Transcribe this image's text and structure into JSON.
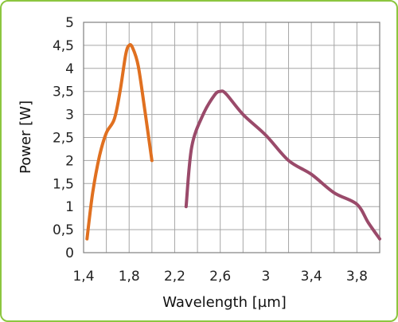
{
  "chart_data": {
    "type": "line",
    "xlabel": "Wavelength [µm]",
    "ylabel": "Power [W]",
    "xlim": [
      1.4,
      4.0
    ],
    "ylim": [
      0,
      5
    ],
    "x_ticks": [
      1.4,
      1.8,
      2.2,
      2.6,
      3.0,
      3.4,
      3.8
    ],
    "x_tick_labels": [
      "1,4",
      "1,8",
      "2,2",
      "2,6",
      "3",
      "3,4",
      "3,8"
    ],
    "y_ticks": [
      0,
      0.5,
      1,
      1.5,
      2,
      2.5,
      3,
      3.5,
      4,
      4.5,
      5
    ],
    "y_tick_labels": [
      "0",
      "0,5",
      "1",
      "1,5",
      "2",
      "2,5",
      "3",
      "3,5",
      "4",
      "4,5",
      "5"
    ],
    "x_minor_step": 0.2,
    "grid": true,
    "legend": "none",
    "series": [
      {
        "color": "#e07020",
        "points": [
          [
            1.43,
            0.3
          ],
          [
            1.48,
            1.3
          ],
          [
            1.54,
            2.1
          ],
          [
            1.6,
            2.6
          ],
          [
            1.67,
            2.9
          ],
          [
            1.72,
            3.5
          ],
          [
            1.77,
            4.3
          ],
          [
            1.8,
            4.5
          ],
          [
            1.83,
            4.45
          ],
          [
            1.88,
            4.05
          ],
          [
            1.94,
            3.05
          ],
          [
            2.0,
            2.0
          ]
        ]
      },
      {
        "color": "#9a4a6a",
        "points": [
          [
            2.3,
            1.0
          ],
          [
            2.35,
            2.3
          ],
          [
            2.45,
            3.0
          ],
          [
            2.55,
            3.42
          ],
          [
            2.6,
            3.5
          ],
          [
            2.65,
            3.45
          ],
          [
            2.8,
            3.0
          ],
          [
            3.0,
            2.55
          ],
          [
            3.2,
            2.0
          ],
          [
            3.4,
            1.7
          ],
          [
            3.6,
            1.3
          ],
          [
            3.8,
            1.05
          ],
          [
            3.9,
            0.65
          ],
          [
            4.0,
            0.3
          ]
        ]
      }
    ]
  }
}
